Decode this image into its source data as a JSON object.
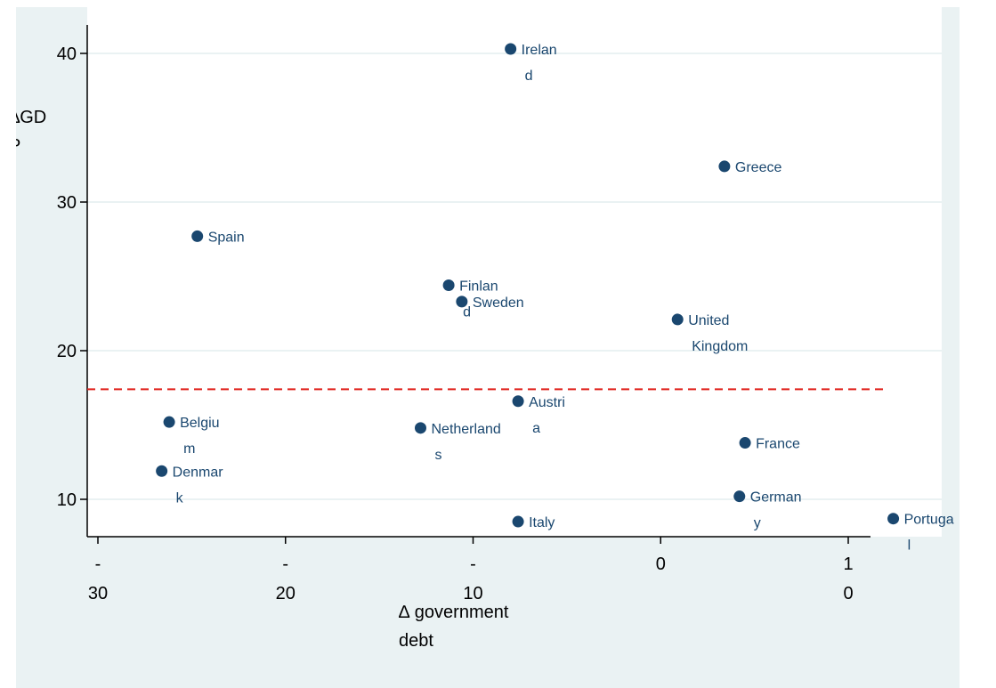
{
  "chart_data": {
    "type": "scatter",
    "xlabel": "∆ government debt",
    "ylabel": "∆GDP",
    "xlim": [
      -30,
      13
    ],
    "ylim": [
      7.5,
      42
    ],
    "x_ticks": [
      {
        "value": -30,
        "label": "-30"
      },
      {
        "value": -20,
        "label": "-20"
      },
      {
        "value": -10,
        "label": "-10"
      },
      {
        "value": 0,
        "label": "0"
      },
      {
        "value": 10,
        "label": "10"
      }
    ],
    "y_ticks": [
      10,
      20,
      30,
      40
    ],
    "grid": true,
    "reference_line": {
      "orientation": "horizontal",
      "y": 17.4,
      "style": "dashed",
      "color": "#e0201b"
    },
    "marker_color": "#1a476f",
    "label_color": "#1a476f",
    "points": [
      {
        "label": "Ireland",
        "x": -8.0,
        "y": 40.3
      },
      {
        "label": "Greece",
        "x": 3.4,
        "y": 32.4
      },
      {
        "label": "Spain",
        "x": -24.7,
        "y": 27.7
      },
      {
        "label": "Finland",
        "x": -11.3,
        "y": 24.4
      },
      {
        "label": "Sweden",
        "x": -10.6,
        "y": 23.3
      },
      {
        "label": "United Kingdom",
        "x": 0.9,
        "y": 22.1
      },
      {
        "label": "Austria",
        "x": -7.6,
        "y": 16.6
      },
      {
        "label": "Belgium",
        "x": -26.2,
        "y": 15.2
      },
      {
        "label": "Netherlands",
        "x": -12.8,
        "y": 14.8
      },
      {
        "label": "France",
        "x": 4.5,
        "y": 13.8
      },
      {
        "label": "Denmark",
        "x": -26.6,
        "y": 11.9
      },
      {
        "label": "Germany",
        "x": 4.2,
        "y": 10.2
      },
      {
        "label": "Italy",
        "x": -7.6,
        "y": 8.5
      },
      {
        "label": "Portugal",
        "x": 12.4,
        "y": 8.7
      }
    ]
  }
}
